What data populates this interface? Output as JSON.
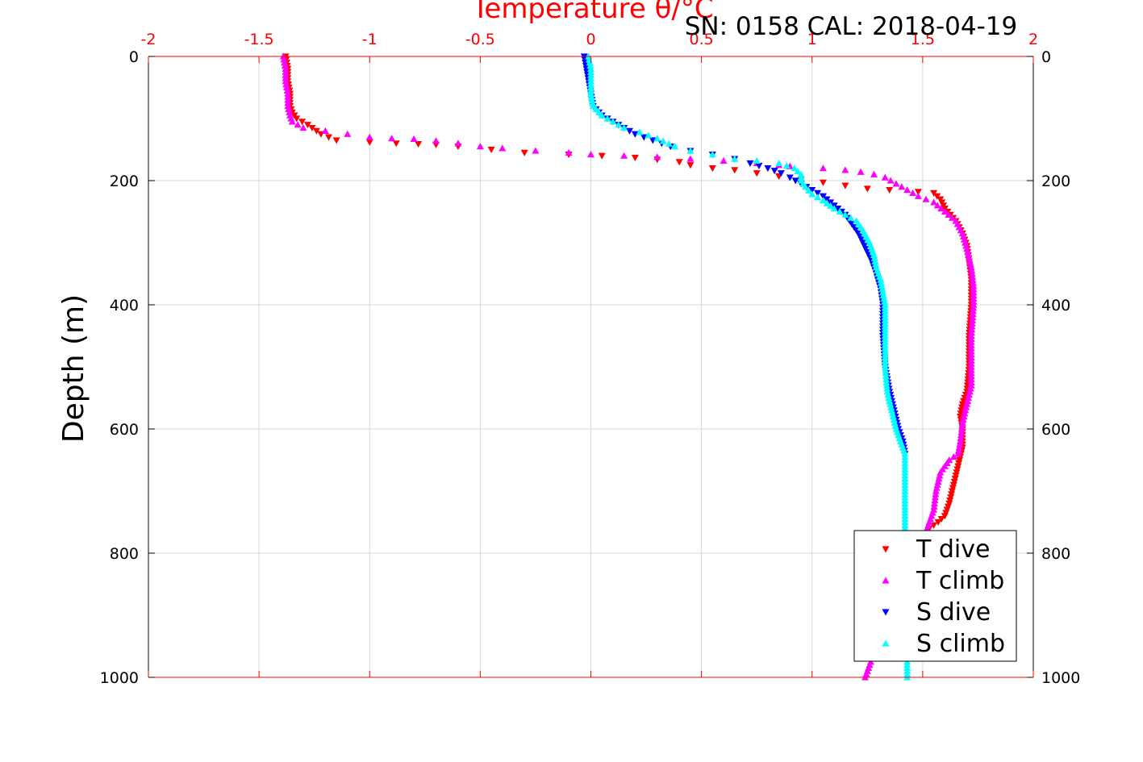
{
  "chart_data": {
    "type": "scatter",
    "title": "Temperature θ/°C",
    "subtitle": "SN: 0158  CAL: 2018-04-19",
    "xlabel": "Temperature θ/°C",
    "ylabel": "Depth (m)",
    "xlim": [
      -2,
      2
    ],
    "ylim": [
      0,
      1000
    ],
    "y_reversed": true,
    "x_ticks": [
      "-2",
      "-1.5",
      "-1",
      "-0.5",
      "0",
      "0.5",
      "1",
      "1.5",
      "2"
    ],
    "y_ticks": [
      "0",
      "200",
      "400",
      "600",
      "800",
      "1000"
    ],
    "grid": true,
    "legend_position": "bottom-right",
    "colors": {
      "axes": "#ff0000",
      "grid": "#d9d9d9"
    },
    "series": [
      {
        "name": "T dive",
        "color": "#ff0000",
        "marker": "triangle-down",
        "points": [
          [
            -1.38,
            0
          ],
          [
            -1.37,
            20
          ],
          [
            -1.37,
            40
          ],
          [
            -1.36,
            60
          ],
          [
            -1.36,
            80
          ],
          [
            -1.35,
            90
          ],
          [
            -1.33,
            100
          ],
          [
            -1.28,
            110
          ],
          [
            -1.22,
            125
          ],
          [
            -1.15,
            135
          ],
          [
            -1.0,
            138
          ],
          [
            -0.88,
            140
          ],
          [
            -0.78,
            141
          ],
          [
            -0.7,
            142
          ],
          [
            -0.6,
            145
          ],
          [
            -0.45,
            150
          ],
          [
            -0.3,
            155
          ],
          [
            -0.1,
            158
          ],
          [
            0.05,
            160
          ],
          [
            0.2,
            163
          ],
          [
            0.3,
            166
          ],
          [
            0.4,
            170
          ],
          [
            0.45,
            175
          ],
          [
            0.55,
            180
          ],
          [
            0.65,
            183
          ],
          [
            0.75,
            188
          ],
          [
            0.85,
            193
          ],
          [
            0.95,
            198
          ],
          [
            1.05,
            203
          ],
          [
            1.15,
            208
          ],
          [
            1.25,
            213
          ],
          [
            1.35,
            215
          ],
          [
            1.48,
            218
          ],
          [
            1.55,
            220
          ],
          [
            1.58,
            230
          ],
          [
            1.6,
            245
          ],
          [
            1.65,
            265
          ],
          [
            1.68,
            285
          ],
          [
            1.7,
            305
          ],
          [
            1.71,
            330
          ],
          [
            1.72,
            360
          ],
          [
            1.72,
            400
          ],
          [
            1.71,
            450
          ],
          [
            1.71,
            500
          ],
          [
            1.7,
            540
          ],
          [
            1.68,
            560
          ],
          [
            1.67,
            580
          ],
          [
            1.68,
            600
          ],
          [
            1.68,
            630
          ],
          [
            1.66,
            660
          ],
          [
            1.64,
            690
          ],
          [
            1.62,
            720
          ],
          [
            1.6,
            740
          ],
          [
            1.57,
            750
          ],
          [
            1.53,
            760
          ]
        ]
      },
      {
        "name": "T climb",
        "color": "#ff00ff",
        "marker": "triangle-up",
        "points": [
          [
            -1.39,
            0
          ],
          [
            -1.38,
            20
          ],
          [
            -1.38,
            40
          ],
          [
            -1.37,
            60
          ],
          [
            -1.37,
            80
          ],
          [
            -1.36,
            95
          ],
          [
            -1.35,
            105
          ],
          [
            -1.3,
            115
          ],
          [
            -1.2,
            120
          ],
          [
            -1.1,
            125
          ],
          [
            -1.0,
            130
          ],
          [
            -0.9,
            132
          ],
          [
            -0.8,
            133
          ],
          [
            -0.7,
            136
          ],
          [
            -0.6,
            140
          ],
          [
            -0.5,
            145
          ],
          [
            -0.4,
            148
          ],
          [
            -0.25,
            152
          ],
          [
            -0.1,
            155
          ],
          [
            0.0,
            158
          ],
          [
            0.15,
            160
          ],
          [
            0.3,
            162
          ],
          [
            0.45,
            165
          ],
          [
            0.6,
            168
          ],
          [
            0.75,
            172
          ],
          [
            0.85,
            175
          ],
          [
            0.9,
            177
          ],
          [
            1.05,
            180
          ],
          [
            1.15,
            183
          ],
          [
            1.22,
            186
          ],
          [
            1.28,
            190
          ],
          [
            1.33,
            195
          ],
          [
            1.38,
            205
          ],
          [
            1.43,
            215
          ],
          [
            1.48,
            225
          ],
          [
            1.55,
            235
          ],
          [
            1.6,
            250
          ],
          [
            1.65,
            265
          ],
          [
            1.68,
            285
          ],
          [
            1.7,
            310
          ],
          [
            1.72,
            340
          ],
          [
            1.73,
            370
          ],
          [
            1.73,
            400
          ],
          [
            1.72,
            450
          ],
          [
            1.72,
            500
          ],
          [
            1.72,
            530
          ],
          [
            1.7,
            560
          ],
          [
            1.68,
            590
          ],
          [
            1.67,
            620
          ],
          [
            1.66,
            640
          ],
          [
            1.62,
            650
          ],
          [
            1.58,
            670
          ],
          [
            1.56,
            700
          ],
          [
            1.55,
            730
          ],
          [
            1.52,
            760
          ],
          [
            1.48,
            790
          ],
          [
            1.42,
            830
          ],
          [
            1.37,
            870
          ],
          [
            1.33,
            910
          ],
          [
            1.29,
            950
          ],
          [
            1.26,
            980
          ],
          [
            1.24,
            1000
          ]
        ]
      },
      {
        "name": "S dive",
        "color": "#0000ff",
        "marker": "triangle-down",
        "points": [
          [
            -0.03,
            0
          ],
          [
            -0.02,
            20
          ],
          [
            -0.01,
            40
          ],
          [
            0.0,
            60
          ],
          [
            0.01,
            80
          ],
          [
            0.05,
            95
          ],
          [
            0.1,
            105
          ],
          [
            0.15,
            115
          ],
          [
            0.2,
            125
          ],
          [
            0.28,
            135
          ],
          [
            0.36,
            145
          ],
          [
            0.45,
            152
          ],
          [
            0.55,
            158
          ],
          [
            0.65,
            165
          ],
          [
            0.72,
            172
          ],
          [
            0.8,
            180
          ],
          [
            0.86,
            188
          ],
          [
            0.9,
            195
          ],
          [
            0.95,
            205
          ],
          [
            1.0,
            215
          ],
          [
            1.05,
            225
          ],
          [
            1.1,
            240
          ],
          [
            1.15,
            255
          ],
          [
            1.18,
            270
          ],
          [
            1.21,
            285
          ],
          [
            1.23,
            300
          ],
          [
            1.25,
            315
          ],
          [
            1.27,
            330
          ],
          [
            1.29,
            350
          ],
          [
            1.31,
            375
          ],
          [
            1.32,
            400
          ],
          [
            1.32,
            450
          ],
          [
            1.33,
            500
          ],
          [
            1.35,
            540
          ],
          [
            1.37,
            570
          ],
          [
            1.39,
            600
          ],
          [
            1.41,
            620
          ],
          [
            1.42,
            640
          ]
        ]
      },
      {
        "name": "S climb",
        "color": "#00ffff",
        "marker": "triangle-up",
        "points": [
          [
            -0.01,
            0
          ],
          [
            0.0,
            20
          ],
          [
            0.0,
            40
          ],
          [
            0.0,
            60
          ],
          [
            0.01,
            80
          ],
          [
            0.05,
            95
          ],
          [
            0.1,
            105
          ],
          [
            0.15,
            115
          ],
          [
            0.22,
            122
          ],
          [
            0.3,
            132
          ],
          [
            0.38,
            145
          ],
          [
            0.45,
            152
          ],
          [
            0.55,
            158
          ],
          [
            0.65,
            165
          ],
          [
            0.75,
            168
          ],
          [
            0.85,
            172
          ],
          [
            0.92,
            180
          ],
          [
            0.95,
            190
          ],
          [
            0.95,
            200
          ],
          [
            0.97,
            210
          ],
          [
            1.0,
            222
          ],
          [
            1.05,
            232
          ],
          [
            1.1,
            245
          ],
          [
            1.15,
            255
          ],
          [
            1.2,
            265
          ],
          [
            1.23,
            280
          ],
          [
            1.26,
            300
          ],
          [
            1.28,
            320
          ],
          [
            1.29,
            340
          ],
          [
            1.31,
            360
          ],
          [
            1.32,
            380
          ],
          [
            1.33,
            400
          ],
          [
            1.33,
            450
          ],
          [
            1.33,
            500
          ],
          [
            1.34,
            540
          ],
          [
            1.36,
            570
          ],
          [
            1.38,
            600
          ],
          [
            1.4,
            620
          ],
          [
            1.42,
            640
          ],
          [
            1.42,
            680
          ],
          [
            1.42,
            720
          ],
          [
            1.42,
            760
          ],
          [
            1.42,
            800
          ],
          [
            1.42,
            840
          ],
          [
            1.42,
            880
          ],
          [
            1.43,
            920
          ],
          [
            1.43,
            960
          ],
          [
            1.43,
            1000
          ]
        ]
      }
    ]
  }
}
